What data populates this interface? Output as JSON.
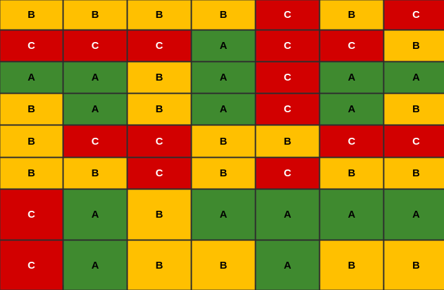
{
  "colors": {
    "A": "#3f8a2f",
    "B": "#ffc000",
    "C": "#d20000"
  },
  "grid": [
    [
      "B",
      "B",
      "B",
      "B",
      "C",
      "B",
      "C"
    ],
    [
      "C",
      "C",
      "C",
      "A",
      "C",
      "C",
      "B"
    ],
    [
      "A",
      "A",
      "B",
      "A",
      "C",
      "A",
      "A"
    ],
    [
      "B",
      "A",
      "B",
      "A",
      "C",
      "A",
      "B"
    ],
    [
      "B",
      "C",
      "C",
      "B",
      "B",
      "C",
      "C"
    ],
    [
      "B",
      "B",
      "C",
      "B",
      "C",
      "B",
      "B"
    ],
    [
      "C",
      "A",
      "B",
      "A",
      "A",
      "A",
      "A"
    ],
    [
      "C",
      "A",
      "B",
      "B",
      "A",
      "B",
      "B"
    ]
  ]
}
